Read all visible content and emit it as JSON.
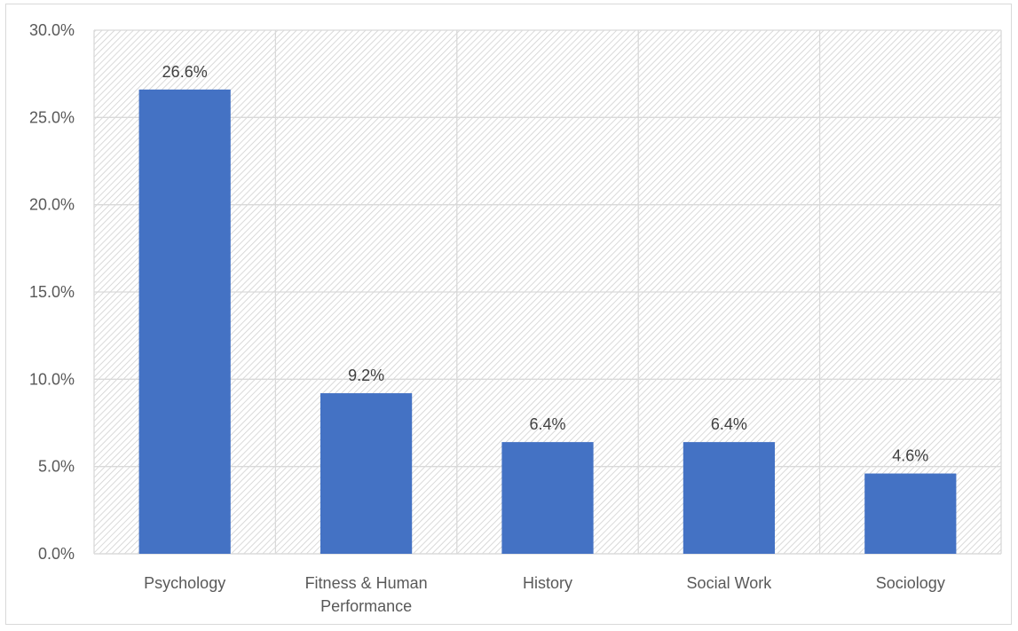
{
  "chart_data": {
    "type": "bar",
    "categories": [
      [
        "Psychology"
      ],
      [
        "Fitness & Human",
        "Performance"
      ],
      [
        "History"
      ],
      [
        "Social Work"
      ],
      [
        "Sociology"
      ]
    ],
    "values": [
      26.6,
      9.2,
      6.4,
      6.4,
      4.6
    ],
    "data_labels": [
      "26.6%",
      "9.2%",
      "6.4%",
      "6.4%",
      "4.6%"
    ],
    "y_ticks": [
      0,
      5,
      10,
      15,
      20,
      25,
      30
    ],
    "y_tick_labels": [
      "0.0%",
      "5.0%",
      "10.0%",
      "15.0%",
      "20.0%",
      "25.0%",
      "30.0%"
    ],
    "ylim": [
      0,
      30
    ],
    "grid": true,
    "legend": "none",
    "title": "",
    "xlabel": "",
    "ylabel": "",
    "bar_color": "#4472c4",
    "grid_color": "#d9d9d9",
    "plot_pattern": "diagonal-hatch"
  }
}
